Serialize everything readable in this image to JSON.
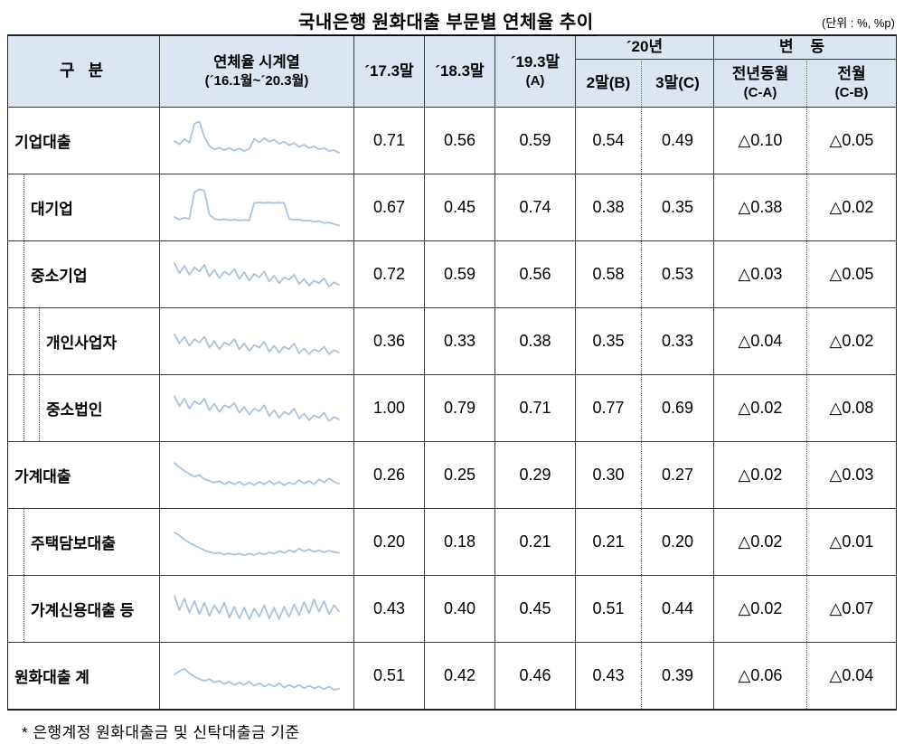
{
  "title": "국내은행 원화대출 부문별 연체율 추이",
  "unit_note": "(단위 : %, %p)",
  "footnote": "* 은행계정 원화대출금 및 신탁대출금 기준",
  "table": {
    "header": {
      "category": "구 분",
      "timeseries": "연체율 시계열",
      "timeseries_range": "(´16.1월~´20.3월)",
      "mar17": "´17.3말",
      "mar18": "´18.3말",
      "mar19": "´19.3말",
      "mar19_sub": "(A)",
      "year20": "´20년",
      "feb20": "2말(B)",
      "mar20": "3말(C)",
      "change": "변 동",
      "yoy": "전년동월",
      "yoy_sub": "(C-A)",
      "mom": "전월",
      "mom_sub": "(C-B)"
    }
  },
  "chart_data": {
    "type": "table",
    "title": "국내은행 원화대출 부문별 연체율 추이",
    "unit": "%, %p",
    "header_bg": "#dce6f2",
    "sparkline_color": "#a9c3dd",
    "columns": [
      "구 분",
      "연체율 시계열 (´16.1월~´20.3월)",
      "´17.3말",
      "´18.3말",
      "´19.3말 (A)",
      "´20년 2말(B)",
      "´20년 3말(C)",
      "변동 전년동월(C-A)",
      "변동 전월(C-B)"
    ],
    "rows": [
      {
        "label": "기업대출",
        "indent": 0,
        "values": [
          "0.71",
          "0.56",
          "0.59",
          "0.54",
          "0.49",
          "△0.10",
          "△0.05"
        ],
        "spark": [
          50,
          42,
          55,
          46,
          92,
          97,
          60,
          38,
          30,
          34,
          28,
          33,
          27,
          32,
          26,
          31,
          55,
          47,
          57,
          49,
          53,
          43,
          49,
          40,
          45,
          36,
          41,
          33,
          37,
          30,
          33,
          26,
          28,
          22
        ]
      },
      {
        "label": "대기업",
        "indent": 1,
        "values": [
          "0.67",
          "0.45",
          "0.74",
          "0.38",
          "0.35",
          "△0.38",
          "△0.02"
        ],
        "spark": [
          28,
          22,
          26,
          24,
          88,
          95,
          91,
          34,
          24,
          21,
          23,
          20,
          22,
          20,
          21,
          20,
          62,
          63,
          62,
          63,
          62,
          63,
          62,
          24,
          21,
          22,
          19,
          20,
          17,
          18,
          14,
          15,
          11,
          8
        ]
      },
      {
        "label": "중소기업",
        "indent": 1,
        "values": [
          "0.72",
          "0.59",
          "0.56",
          "0.58",
          "0.53",
          "△0.03",
          "△0.05"
        ],
        "spark": [
          78,
          54,
          72,
          50,
          68,
          58,
          74,
          46,
          62,
          42,
          58,
          50,
          64,
          40,
          56,
          36,
          52,
          44,
          58,
          34,
          48,
          30,
          44,
          38,
          50,
          28,
          40,
          24,
          36,
          30,
          42,
          22,
          32,
          26
        ]
      },
      {
        "label": "개인사업자",
        "indent": 2,
        "values": [
          "0.36",
          "0.33",
          "0.38",
          "0.35",
          "0.33",
          "△0.04",
          "△0.02"
        ],
        "spark": [
          68,
          46,
          62,
          40,
          56,
          48,
          62,
          36,
          52,
          32,
          48,
          42,
          56,
          32,
          46,
          28,
          42,
          36,
          50,
          26,
          40,
          24,
          38,
          32,
          46,
          22,
          34,
          20,
          32,
          26,
          38,
          20,
          30,
          24
        ]
      },
      {
        "label": "중소법인",
        "indent": 2,
        "values": [
          "1.00",
          "0.79",
          "0.71",
          "0.77",
          "0.69",
          "△0.02",
          "△0.08"
        ],
        "spark": [
          80,
          56,
          74,
          50,
          68,
          60,
          74,
          46,
          62,
          42,
          58,
          52,
          64,
          40,
          54,
          36,
          50,
          44,
          58,
          32,
          46,
          28,
          42,
          36,
          50,
          26,
          38,
          22,
          34,
          28,
          40,
          20,
          30,
          24
        ]
      },
      {
        "label": "가계대출",
        "indent": 0,
        "values": [
          "0.26",
          "0.25",
          "0.29",
          "0.30",
          "0.27",
          "△0.02",
          "△0.03"
        ],
        "spark": [
          80,
          70,
          61,
          54,
          47,
          51,
          41,
          37,
          33,
          37,
          29,
          35,
          29,
          35,
          27,
          33,
          27,
          35,
          29,
          37,
          29,
          35,
          27,
          33,
          29,
          39,
          31,
          37,
          29,
          41,
          33,
          43,
          35,
          30
        ]
      },
      {
        "label": "주택담보대출",
        "indent": 1,
        "values": [
          "0.20",
          "0.18",
          "0.21",
          "0.21",
          "0.20",
          "△0.02",
          "△0.01"
        ],
        "spark": [
          74,
          67,
          57,
          49,
          43,
          37,
          31,
          27,
          24,
          25,
          21,
          24,
          20,
          23,
          19,
          23,
          20,
          25,
          21,
          26,
          23,
          29,
          25,
          31,
          27,
          35,
          29,
          33,
          27,
          31,
          26,
          30,
          27,
          25
        ]
      },
      {
        "label": "가계신용대출 등",
        "indent": 1,
        "values": [
          "0.43",
          "0.40",
          "0.45",
          "0.51",
          "0.44",
          "△0.02",
          "△0.07"
        ],
        "spark": [
          82,
          48,
          76,
          42,
          70,
          38,
          66,
          34,
          60,
          40,
          66,
          30,
          56,
          28,
          54,
          26,
          52,
          32,
          60,
          28,
          54,
          26,
          56,
          32,
          62,
          36,
          68,
          40,
          74,
          44,
          70,
          38,
          60,
          45
        ]
      },
      {
        "label": "원화대출 계",
        "indent": 0,
        "values": [
          "0.51",
          "0.42",
          "0.46",
          "0.43",
          "0.39",
          "△0.06",
          "△0.04"
        ],
        "spark": [
          54,
          62,
          68,
          57,
          49,
          43,
          39,
          43,
          35,
          39,
          31,
          37,
          29,
          35,
          29,
          37,
          27,
          33,
          25,
          31,
          25,
          33,
          23,
          29,
          23,
          29,
          21,
          27,
          21,
          25,
          19,
          25,
          17,
          20
        ]
      }
    ]
  }
}
